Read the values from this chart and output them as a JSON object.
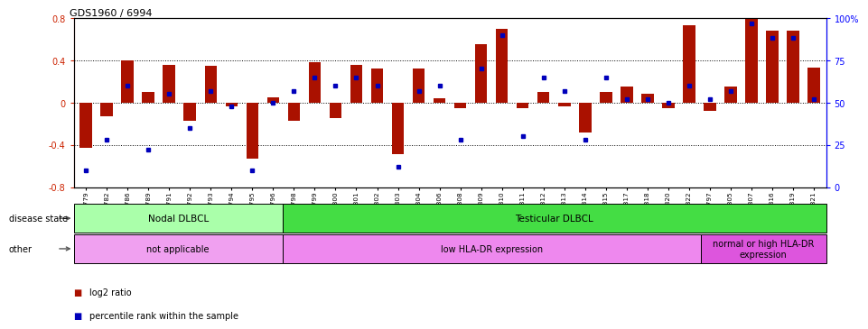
{
  "title": "GDS1960 / 6994",
  "samples": [
    "GSM94779",
    "GSM94782",
    "GSM94786",
    "GSM94789",
    "GSM94791",
    "GSM94792",
    "GSM94793",
    "GSM94794",
    "GSM94795",
    "GSM94796",
    "GSM94798",
    "GSM94799",
    "GSM94800",
    "GSM94801",
    "GSM94802",
    "GSM94803",
    "GSM94804",
    "GSM94806",
    "GSM94808",
    "GSM94809",
    "GSM94810",
    "GSM94811",
    "GSM94812",
    "GSM94813",
    "GSM94814",
    "GSM94815",
    "GSM94817",
    "GSM94818",
    "GSM94820",
    "GSM94822",
    "GSM94797",
    "GSM94805",
    "GSM94807",
    "GSM94816",
    "GSM94819",
    "GSM94821"
  ],
  "log2_ratio": [
    -0.43,
    -0.13,
    0.4,
    0.1,
    0.36,
    -0.17,
    0.35,
    -0.04,
    -0.53,
    0.05,
    -0.17,
    0.38,
    -0.15,
    0.36,
    0.32,
    -0.49,
    0.32,
    0.04,
    -0.05,
    0.55,
    0.7,
    -0.05,
    0.1,
    -0.04,
    -0.28,
    0.1,
    0.15,
    0.08,
    -0.05,
    0.73,
    -0.08,
    0.15,
    0.82,
    0.68,
    0.68,
    0.33
  ],
  "percentile": [
    10,
    28,
    60,
    22,
    55,
    35,
    57,
    48,
    10,
    50,
    57,
    65,
    60,
    65,
    60,
    12,
    57,
    60,
    28,
    70,
    90,
    30,
    65,
    57,
    28,
    65,
    52,
    52,
    50,
    60,
    52,
    57,
    97,
    88,
    88,
    52
  ],
  "bar_color": "#aa1100",
  "dot_color": "#0000bb",
  "ylim_left": [
    -0.8,
    0.8
  ],
  "ylim_right": [
    0,
    100
  ],
  "yticks_left": [
    -0.8,
    -0.4,
    0.0,
    0.4,
    0.8
  ],
  "ytick_left_labels": [
    "-0.8",
    "-0.4",
    "0",
    "0.4",
    "0.8"
  ],
  "yticks_right": [
    0,
    25,
    50,
    75,
    100
  ],
  "ytick_right_labels": [
    "0",
    "25",
    "50",
    "75",
    "100%"
  ],
  "hline_vals": [
    -0.4,
    0.0,
    0.4
  ],
  "disease_state_groups": [
    {
      "label": "Nodal DLBCL",
      "start": 0,
      "end": 10,
      "color": "#aaffaa"
    },
    {
      "label": "Testicular DLBCL",
      "start": 10,
      "end": 36,
      "color": "#44dd44"
    }
  ],
  "other_groups": [
    {
      "label": "not applicable",
      "start": 0,
      "end": 10,
      "color": "#f0a0f0"
    },
    {
      "label": "low HLA-DR expression",
      "start": 10,
      "end": 30,
      "color": "#ee88ee"
    },
    {
      "label": "normal or high HLA-DR\nexpression",
      "start": 30,
      "end": 36,
      "color": "#dd55dd"
    }
  ],
  "legend_items": [
    {
      "label": "log2 ratio",
      "color": "#aa1100"
    },
    {
      "label": "percentile rank within the sample",
      "color": "#0000bb"
    }
  ]
}
